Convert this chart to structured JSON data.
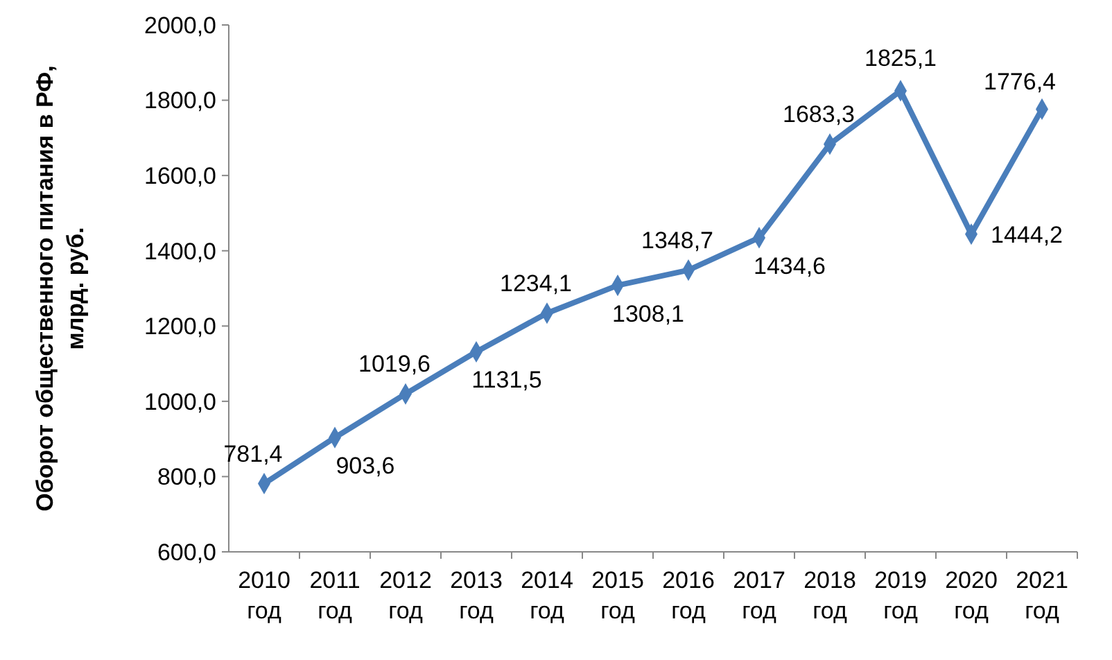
{
  "chart_data": {
    "type": "line",
    "ylabel": "Оборот общественного питания в РФ, млрд. руб.",
    "categories": [
      "2010 год",
      "2011 год",
      "2012 год",
      "2013 год",
      "2014 год",
      "2015 год",
      "2016 год",
      "2017 год",
      "2018 год",
      "2019 год",
      "2020 год",
      "2021 год"
    ],
    "series": [
      {
        "color": "#4a7ebb",
        "values": [
          781.4,
          903.6,
          1019.6,
          1131.5,
          1234.1,
          1308.1,
          1348.7,
          1434.6,
          1683.3,
          1825.1,
          1444.2,
          1776.4
        ],
        "value_labels": [
          "781,4",
          "903,6",
          "1019,6",
          "1131,5",
          "1234,1",
          "1308,1",
          "1348,7",
          "1434,6",
          "1683,3",
          "1825,1",
          "1444,2",
          "1776,4"
        ]
      }
    ],
    "ylim": [
      600,
      2000
    ],
    "yticks": [
      {
        "value": 600,
        "label": "600,0"
      },
      {
        "value": 800,
        "label": "800,0"
      },
      {
        "value": 1000,
        "label": "1000,0"
      },
      {
        "value": 1200,
        "label": "1200,0"
      },
      {
        "value": 1400,
        "label": "1400,0"
      },
      {
        "value": 1600,
        "label": "1600,0"
      },
      {
        "value": 1800,
        "label": "1800,0"
      },
      {
        "value": 2000,
        "label": "2000,0"
      }
    ],
    "grid": false,
    "marker": "diamond",
    "line_style": "solid"
  }
}
